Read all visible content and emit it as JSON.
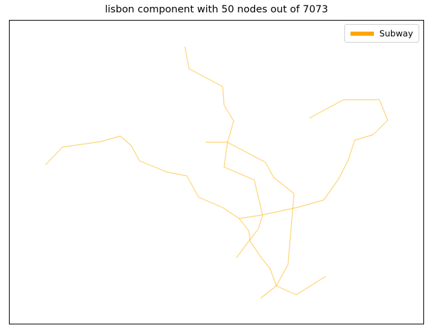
{
  "title": "lisbon component with 50 nodes out of 7073",
  "legend": {
    "label": "Subway",
    "swatch_color": "#ffa500"
  },
  "edge_color": "#ffb000",
  "edge_opacity": 0.55
}
